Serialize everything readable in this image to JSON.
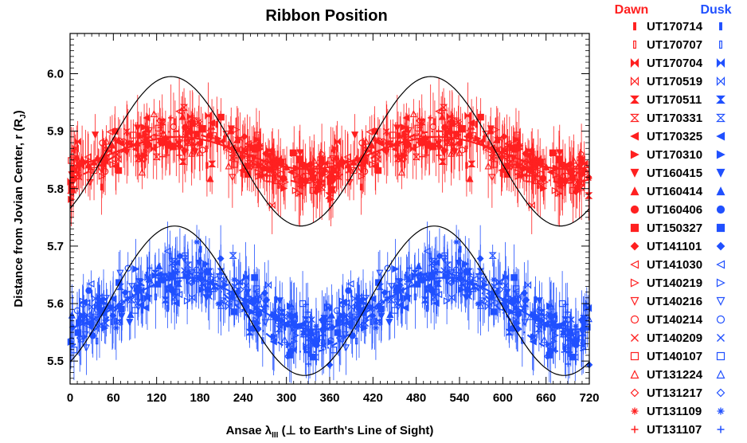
{
  "chart_data": {
    "type": "scatter",
    "title": "Ribbon Position",
    "xlabel": "Ansae λ",
    "xlabel_sub": "III",
    "xlabel_rest": " (⊥ to Earth's Line of Sight)",
    "ylabel": "Distance from Jovian Center, r (R",
    "ylabel_sub": "J",
    "ylabel_end": ")",
    "xlim": [
      0,
      720
    ],
    "ylim": [
      5.46,
      6.07
    ],
    "x_ticks": [
      0,
      60,
      120,
      180,
      240,
      300,
      360,
      420,
      480,
      540,
      600,
      660,
      720
    ],
    "x_tick_labels": [
      "0",
      "60",
      "120",
      "180",
      "240",
      "300",
      "360",
      "420",
      "480",
      "540",
      "600",
      "660",
      "720"
    ],
    "y_ticks": [
      5.5,
      5.6,
      5.7,
      5.8,
      5.9,
      6.0
    ],
    "y_tick_labels": [
      "5.5",
      "5.6",
      "5.7",
      "5.8",
      "5.9",
      "6.0"
    ],
    "colors": {
      "dawn": "#ff2020",
      "dusk": "#2050ff",
      "model": "#000000"
    },
    "legend_header": {
      "dawn": "Dawn",
      "dusk": "Dusk"
    },
    "legend": [
      {
        "label": "UT170714",
        "symbol": "thin-filled-bar"
      },
      {
        "label": "UT170707",
        "symbol": "thin-open-bar"
      },
      {
        "label": "UT170704",
        "symbol": "filled-bowtie"
      },
      {
        "label": "UT170519",
        "symbol": "open-bowtie"
      },
      {
        "label": "UT170511",
        "symbol": "filled-hourglass"
      },
      {
        "label": "UT170331",
        "symbol": "open-hourglass"
      },
      {
        "label": "UT170325",
        "symbol": "filled-triangle-left"
      },
      {
        "label": "UT170310",
        "symbol": "filled-triangle-right"
      },
      {
        "label": "UT160415",
        "symbol": "filled-triangle-down"
      },
      {
        "label": "UT160414",
        "symbol": "filled-triangle-up"
      },
      {
        "label": "UT160406",
        "symbol": "filled-circle"
      },
      {
        "label": "UT150327",
        "symbol": "filled-square"
      },
      {
        "label": "UT141101",
        "symbol": "filled-diamond"
      },
      {
        "label": "UT141030",
        "symbol": "open-triangle-left"
      },
      {
        "label": "UT140219",
        "symbol": "open-triangle-right"
      },
      {
        "label": "UT140216",
        "symbol": "open-triangle-down"
      },
      {
        "label": "UT140214",
        "symbol": "open-circle"
      },
      {
        "label": "UT140209",
        "symbol": "x-cross"
      },
      {
        "label": "UT140107",
        "symbol": "open-square"
      },
      {
        "label": "UT131224",
        "symbol": "open-triangle-up"
      },
      {
        "label": "UT131217",
        "symbol": "open-diamond"
      },
      {
        "label": "UT131109",
        "symbol": "asterisk"
      },
      {
        "label": "UT131107",
        "symbol": "plus"
      }
    ],
    "models": {
      "dawn_large_sine": {
        "mean": 5.865,
        "amplitude": 0.13,
        "peak_lambda": 140,
        "period": 360
      },
      "dusk_large_sine": {
        "mean": 5.605,
        "amplitude": 0.13,
        "peak_lambda": 145,
        "period": 360
      },
      "dawn_fit_solid": {
        "mean": 5.862,
        "amplitude": 0.028,
        "peak_lambda": 150,
        "period": 360
      },
      "dawn_fit_dashed": {
        "mean": 5.855,
        "amplitude": 0.045,
        "peak_lambda": 150,
        "period": 360
      },
      "dusk_fit_solid": {
        "mean": 5.6,
        "amplitude": 0.045,
        "peak_lambda": 160,
        "period": 360
      },
      "dusk_fit_dashed": {
        "mean": 5.585,
        "amplitude": 0.07,
        "peak_lambda": 150,
        "period": 360
      }
    },
    "scatter_generator": {
      "points_per_period": 340,
      "dawn": {
        "mean": 5.86,
        "amplitude": 0.035,
        "peak_lambda": 150,
        "scatter": 0.06,
        "typical_error": 0.035
      },
      "dusk": {
        "mean": 5.6,
        "amplitude": 0.05,
        "peak_lambda": 155,
        "scatter": 0.065,
        "typical_error": 0.035
      }
    },
    "grid": false,
    "legend_position": "right, outside"
  }
}
